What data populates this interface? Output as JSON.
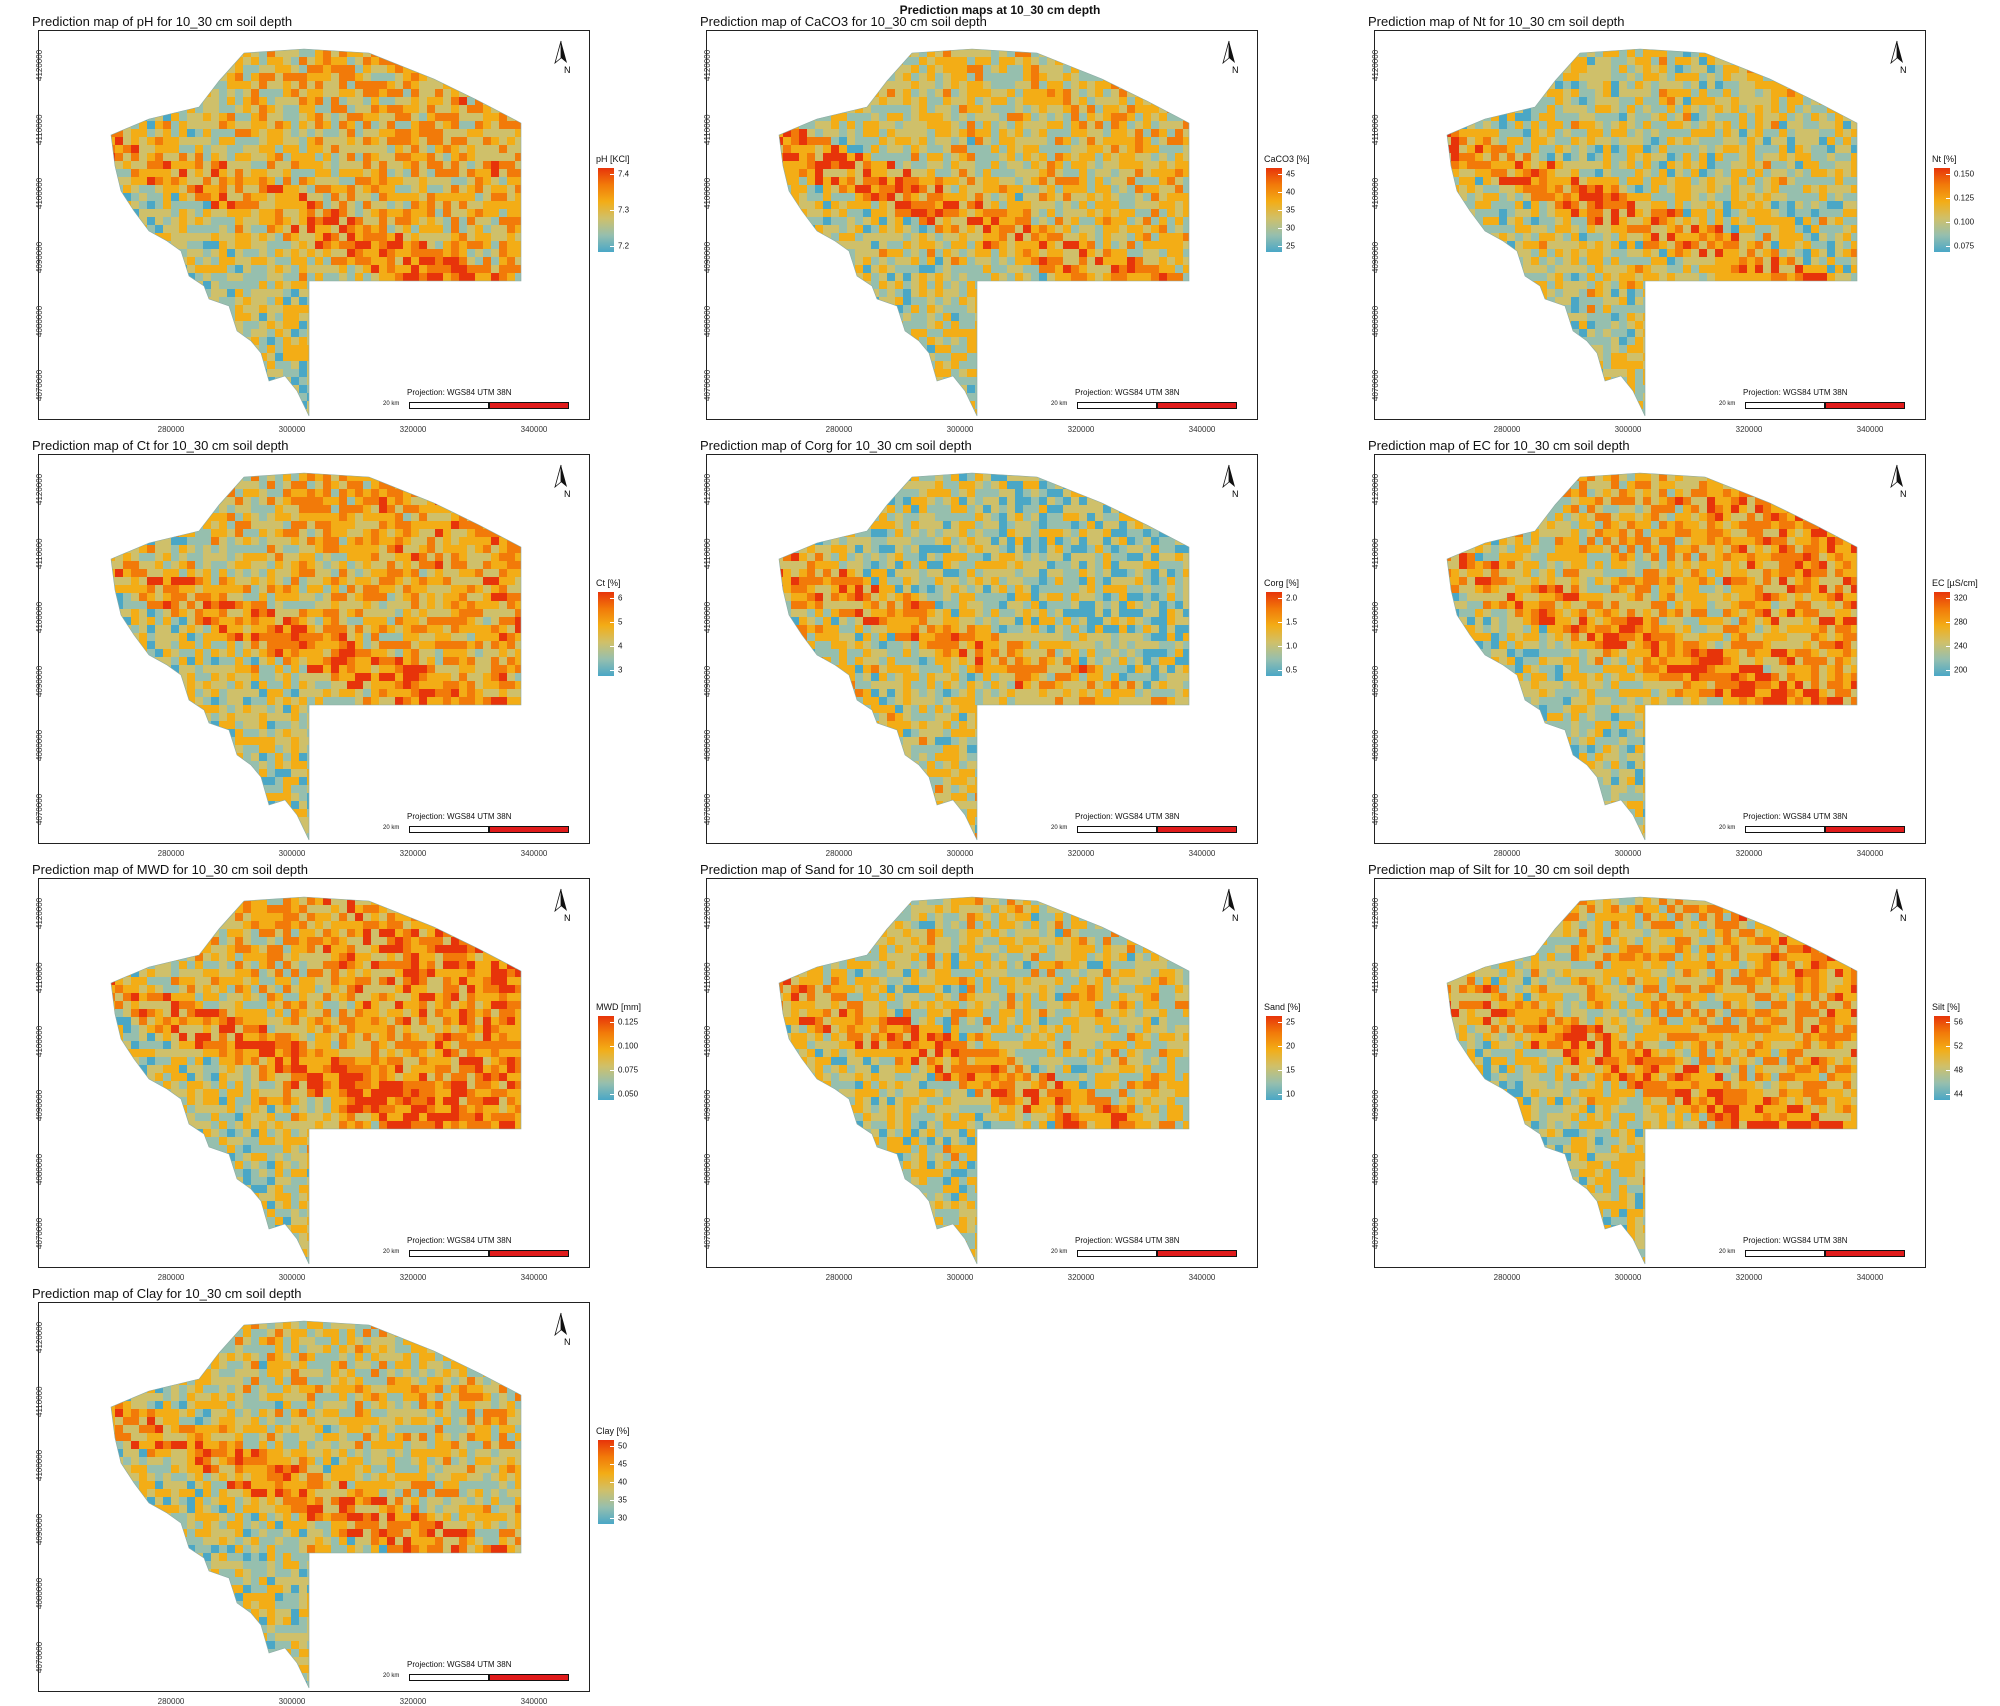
{
  "title": "Prediction maps at 10_30 cm depth",
  "projection": "Projection: WGS84 UTM 38N",
  "scale_label": "20 km",
  "x_ticks": [
    "280000",
    "300000",
    "320000",
    "340000"
  ],
  "y_ticks": [
    "4120000",
    "4110000",
    "4100000",
    "4090000",
    "4080000",
    "4070000"
  ],
  "palette": [
    "#4aa7c6",
    "#96bfae",
    "#cfc06a",
    "#f3ad16",
    "#f27a09",
    "#e7340a"
  ],
  "panels": [
    {
      "id": "ph",
      "title": "Prediction map of pH for 10_30 cm soil depth",
      "legend_title": "pH [KCl]",
      "labels": [
        "7.4",
        "7.3",
        "7.2"
      ],
      "bias": 0.25
    },
    {
      "id": "caco3",
      "title": "Prediction map of CaCO3 for 10_30 cm soil depth",
      "legend_title": "CaCO3 [%]",
      "labels": [
        "45",
        "40",
        "35",
        "30",
        "25"
      ],
      "bias": 0.1
    },
    {
      "id": "nt",
      "title": "Prediction map of Nt for 10_30 cm soil depth",
      "legend_title": "Nt [%]",
      "labels": [
        "0.150",
        "0.125",
        "0.100",
        "0.075"
      ],
      "bias": 0.0
    },
    {
      "id": "ct",
      "title": "Prediction map of Ct for 10_30 cm soil depth",
      "legend_title": "Ct [%]",
      "labels": [
        "6",
        "5",
        "4",
        "3"
      ],
      "bias": 0.3
    },
    {
      "id": "corg",
      "title": "Prediction map of Corg for 10_30 cm soil depth",
      "legend_title": "Corg [%]",
      "labels": [
        "2.0",
        "1.5",
        "1.0",
        "0.5"
      ],
      "bias": -0.15
    },
    {
      "id": "ec",
      "title": "Prediction map of EC for 10_30 cm soil depth",
      "legend_title": "EC [µS/cm]",
      "labels": [
        "320",
        "280",
        "240",
        "200"
      ],
      "bias": 0.35
    },
    {
      "id": "mwd",
      "title": "Prediction map of MWD for 10_30 cm soil depth",
      "legend_title": "MWD [mm]",
      "labels": [
        "0.125",
        "0.100",
        "0.075",
        "0.050"
      ],
      "bias": 0.45
    },
    {
      "id": "sand",
      "title": "Prediction map of Sand for 10_30 cm soil depth",
      "legend_title": "Sand [%]",
      "labels": [
        "25",
        "20",
        "15",
        "10"
      ],
      "bias": 0.05
    },
    {
      "id": "silt",
      "title": "Prediction map of Silt for 10_30 cm soil depth",
      "legend_title": "Silt [%]",
      "labels": [
        "56",
        "52",
        "48",
        "44"
      ],
      "bias": 0.3
    },
    {
      "id": "clay",
      "title": "Prediction map of Clay for 10_30 cm soil depth",
      "legend_title": "Clay [%]",
      "labels": [
        "50",
        "45",
        "40",
        "35",
        "30"
      ],
      "bias": 0.1
    }
  ]
}
